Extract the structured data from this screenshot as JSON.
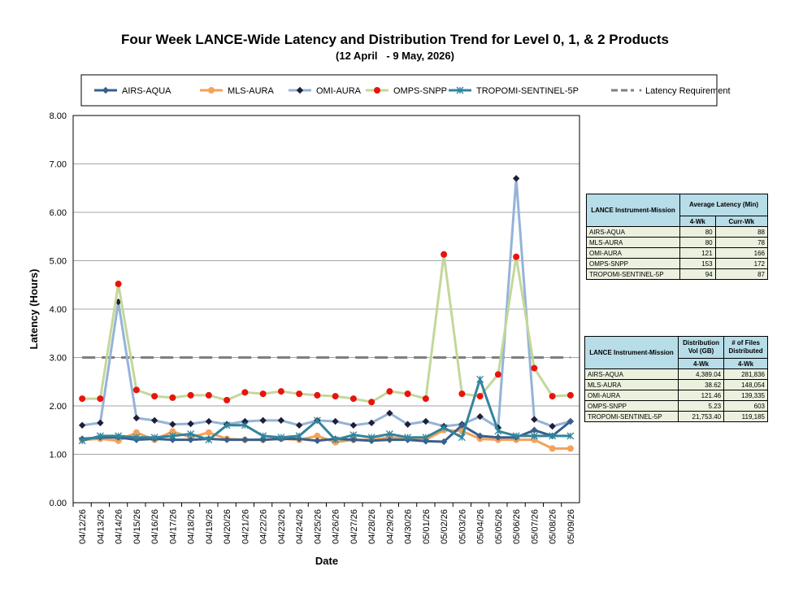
{
  "chart_data": {
    "type": "line",
    "title": "Four Week LANCE-Wide Latency and Distribution Trend for Level 0, 1, & 2 Products",
    "subtitle": "(12 April   - 9 May, 2026)",
    "xlabel": "Date",
    "ylabel": "Latency (Hours)",
    "ylim": [
      0,
      8
    ],
    "yticks": [
      "0.00",
      "1.00",
      "2.00",
      "3.00",
      "4.00",
      "5.00",
      "6.00",
      "7.00",
      "8.00"
    ],
    "grid": true,
    "legend_position": "top",
    "categories": [
      "04/12/26",
      "04/13/26",
      "04/14/26",
      "04/15/26",
      "04/16/26",
      "04/17/26",
      "04/18/26",
      "04/19/26",
      "04/20/26",
      "04/21/26",
      "04/22/26",
      "04/23/26",
      "04/24/26",
      "04/25/26",
      "04/26/26",
      "04/27/26",
      "04/28/26",
      "04/29/26",
      "04/30/26",
      "05/01/26",
      "05/02/26",
      "05/03/26",
      "05/04/26",
      "05/05/26",
      "05/06/26",
      "05/07/26",
      "05/08/26",
      "05/09/26"
    ],
    "series": [
      {
        "name": "AIRS-AQUA",
        "color": "#3a5f8a",
        "marker": "diamond",
        "values": [
          1.32,
          1.35,
          1.35,
          1.3,
          1.32,
          1.3,
          1.3,
          1.32,
          1.3,
          1.3,
          1.3,
          1.32,
          1.32,
          1.28,
          1.32,
          1.3,
          1.28,
          1.3,
          1.3,
          1.27,
          1.26,
          1.6,
          1.38,
          1.35,
          1.35,
          1.5,
          1.38,
          1.68
        ]
      },
      {
        "name": "MLS-AURA",
        "color": "#f4a259",
        "marker": "circle",
        "values": [
          1.3,
          1.32,
          1.28,
          1.45,
          1.3,
          1.47,
          1.35,
          1.45,
          1.32,
          1.3,
          1.3,
          1.32,
          1.3,
          1.38,
          1.25,
          1.3,
          1.3,
          1.35,
          1.32,
          1.3,
          1.5,
          1.48,
          1.32,
          1.3,
          1.3,
          1.3,
          1.12,
          1.12
        ]
      },
      {
        "name": "OMI-AURA",
        "color": "#95b3d7",
        "marker": "diamond-dark",
        "values": [
          1.6,
          1.65,
          4.15,
          1.75,
          1.7,
          1.62,
          1.63,
          1.68,
          1.62,
          1.68,
          1.7,
          1.7,
          1.6,
          1.7,
          1.68,
          1.6,
          1.65,
          1.85,
          1.62,
          1.68,
          1.58,
          1.62,
          1.78,
          1.55,
          6.7,
          1.72,
          1.58,
          1.68
        ]
      },
      {
        "name": "OMPS-SNPP",
        "color": "#c4d79b",
        "marker": "dot-red",
        "values": [
          2.15,
          2.15,
          4.52,
          2.33,
          2.2,
          2.17,
          2.22,
          2.22,
          2.12,
          2.28,
          2.25,
          2.3,
          2.25,
          2.22,
          2.2,
          2.15,
          2.08,
          2.3,
          2.25,
          2.15,
          5.13,
          2.25,
          2.2,
          2.65,
          5.08,
          2.78,
          2.2,
          2.22
        ]
      },
      {
        "name": "TROPOMI-SENTINEL-5P",
        "color": "#31859c",
        "marker": "star",
        "values": [
          1.28,
          1.38,
          1.38,
          1.35,
          1.35,
          1.38,
          1.42,
          1.3,
          1.6,
          1.6,
          1.38,
          1.35,
          1.38,
          1.7,
          1.3,
          1.4,
          1.35,
          1.42,
          1.35,
          1.35,
          1.55,
          1.35,
          2.55,
          1.48,
          1.38,
          1.38,
          1.38,
          1.38
        ]
      },
      {
        "name": "Latency Requirement",
        "color": "#7f7f7f",
        "marker": "dashed",
        "values": [
          3,
          3,
          3,
          3,
          3,
          3,
          3,
          3,
          3,
          3,
          3,
          3,
          3,
          3,
          3,
          3,
          3,
          3,
          3,
          3,
          3,
          3,
          3,
          3,
          3,
          3,
          3,
          3
        ]
      }
    ]
  },
  "latency_table": {
    "header_mission": "LANCE Instrument-Mission",
    "header_group": "Average Latency (Min)",
    "col1": "4-Wk",
    "col2": "Curr-Wk",
    "rows": [
      {
        "name": "AIRS-AQUA",
        "v1": "80",
        "v2": "88"
      },
      {
        "name": "MLS-AURA",
        "v1": "80",
        "v2": "78"
      },
      {
        "name": "OMI-AURA",
        "v1": "121",
        "v2": "166"
      },
      {
        "name": "OMPS-SNPP",
        "v1": "153",
        "v2": "172"
      },
      {
        "name": "TROPOMI-SENTINEL-5P",
        "v1": "94",
        "v2": "87"
      }
    ]
  },
  "distribution_table": {
    "header_mission": "LANCE Instrument-Mission",
    "header_vol": "Distribution Vol (GB)",
    "header_files": "# of Files Distributed",
    "col1": "4-Wk",
    "col2": "4-Wk",
    "rows": [
      {
        "name": "AIRS-AQUA",
        "v1": "4,389.04",
        "v2": "281,836"
      },
      {
        "name": "MLS-AURA",
        "v1": "38.62",
        "v2": "148,054"
      },
      {
        "name": "OMI-AURA",
        "v1": "121.46",
        "v2": "139,335"
      },
      {
        "name": "OMPS-SNPP",
        "v1": "5.23",
        "v2": "603"
      },
      {
        "name": "TROPOMI-SENTINEL-5P",
        "v1": "21,753.40",
        "v2": "119,185"
      }
    ]
  }
}
